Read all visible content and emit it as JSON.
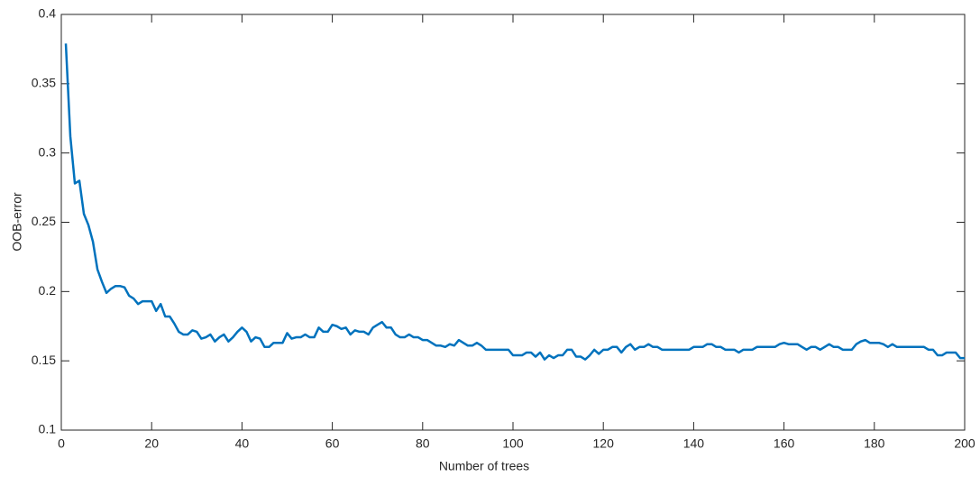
{
  "chart_data": {
    "type": "line",
    "xlabel": "Number of trees",
    "ylabel": "OOB-error",
    "x": [
      1,
      2,
      3,
      4,
      5,
      6,
      7,
      8,
      9,
      10,
      11,
      12,
      13,
      14,
      15,
      16,
      17,
      18,
      19,
      20,
      21,
      22,
      23,
      24,
      25,
      26,
      27,
      28,
      29,
      30,
      31,
      32,
      33,
      34,
      35,
      36,
      37,
      38,
      39,
      40,
      41,
      42,
      43,
      44,
      45,
      46,
      47,
      48,
      49,
      50,
      51,
      52,
      53,
      54,
      55,
      56,
      57,
      58,
      59,
      60,
      61,
      62,
      63,
      64,
      65,
      66,
      67,
      68,
      69,
      70,
      71,
      72,
      73,
      74,
      75,
      76,
      77,
      78,
      79,
      80,
      81,
      82,
      83,
      84,
      85,
      86,
      87,
      88,
      89,
      90,
      91,
      92,
      93,
      94,
      95,
      96,
      97,
      98,
      99,
      100,
      101,
      102,
      103,
      104,
      105,
      106,
      107,
      108,
      109,
      110,
      111,
      112,
      113,
      114,
      115,
      116,
      117,
      118,
      119,
      120,
      121,
      122,
      123,
      124,
      125,
      126,
      127,
      128,
      129,
      130,
      131,
      132,
      133,
      134,
      135,
      136,
      137,
      138,
      139,
      140,
      141,
      142,
      143,
      144,
      145,
      146,
      147,
      148,
      149,
      150,
      151,
      152,
      153,
      154,
      155,
      156,
      157,
      158,
      159,
      160,
      161,
      162,
      163,
      164,
      165,
      166,
      167,
      168,
      169,
      170,
      171,
      172,
      173,
      174,
      175,
      176,
      177,
      178,
      179,
      180,
      181,
      182,
      183,
      184,
      185,
      186,
      187,
      188,
      189,
      190,
      191,
      192,
      193,
      194,
      195,
      196,
      197,
      198,
      199,
      200
    ],
    "series": [
      {
        "name": "OOB-error",
        "color": "#0072bd",
        "values": [
          0.379,
          0.312,
          0.278,
          0.28,
          0.256,
          0.248,
          0.236,
          0.216,
          0.207,
          0.199,
          0.202,
          0.204,
          0.204,
          0.203,
          0.197,
          0.195,
          0.191,
          0.193,
          0.193,
          0.193,
          0.186,
          0.191,
          0.182,
          0.182,
          0.177,
          0.171,
          0.169,
          0.169,
          0.172,
          0.171,
          0.166,
          0.167,
          0.169,
          0.164,
          0.167,
          0.169,
          0.164,
          0.167,
          0.171,
          0.174,
          0.171,
          0.164,
          0.167,
          0.166,
          0.16,
          0.16,
          0.163,
          0.163,
          0.163,
          0.17,
          0.166,
          0.167,
          0.167,
          0.169,
          0.167,
          0.167,
          0.174,
          0.171,
          0.171,
          0.176,
          0.175,
          0.173,
          0.174,
          0.169,
          0.172,
          0.171,
          0.171,
          0.169,
          0.174,
          0.176,
          0.178,
          0.174,
          0.174,
          0.169,
          0.167,
          0.167,
          0.169,
          0.167,
          0.167,
          0.165,
          0.165,
          0.163,
          0.161,
          0.161,
          0.16,
          0.162,
          0.161,
          0.165,
          0.163,
          0.161,
          0.161,
          0.163,
          0.161,
          0.158,
          0.158,
          0.158,
          0.158,
          0.158,
          0.158,
          0.154,
          0.154,
          0.154,
          0.156,
          0.156,
          0.153,
          0.156,
          0.151,
          0.154,
          0.152,
          0.154,
          0.154,
          0.158,
          0.158,
          0.153,
          0.153,
          0.151,
          0.154,
          0.158,
          0.155,
          0.158,
          0.158,
          0.16,
          0.16,
          0.156,
          0.16,
          0.162,
          0.158,
          0.16,
          0.16,
          0.162,
          0.16,
          0.16,
          0.158,
          0.158,
          0.158,
          0.158,
          0.158,
          0.158,
          0.158,
          0.16,
          0.16,
          0.16,
          0.162,
          0.162,
          0.16,
          0.16,
          0.158,
          0.158,
          0.158,
          0.156,
          0.158,
          0.158,
          0.158,
          0.16,
          0.16,
          0.16,
          0.16,
          0.16,
          0.162,
          0.163,
          0.162,
          0.162,
          0.162,
          0.16,
          0.158,
          0.16,
          0.16,
          0.158,
          0.16,
          0.162,
          0.16,
          0.16,
          0.158,
          0.158,
          0.158,
          0.162,
          0.164,
          0.165,
          0.163,
          0.163,
          0.163,
          0.162,
          0.16,
          0.162,
          0.16,
          0.16,
          0.16,
          0.16,
          0.16,
          0.16,
          0.16,
          0.158,
          0.158,
          0.154,
          0.154,
          0.156,
          0.156,
          0.156,
          0.152,
          0.152
        ]
      }
    ],
    "xlim": [
      0,
      200
    ],
    "xticks": [
      0,
      20,
      40,
      60,
      80,
      100,
      120,
      140,
      160,
      180,
      200
    ],
    "ylim": [
      0.1,
      0.4
    ],
    "yticks": [
      0.1,
      0.15,
      0.2,
      0.25,
      0.3,
      0.35,
      0.4
    ],
    "grid": false
  }
}
